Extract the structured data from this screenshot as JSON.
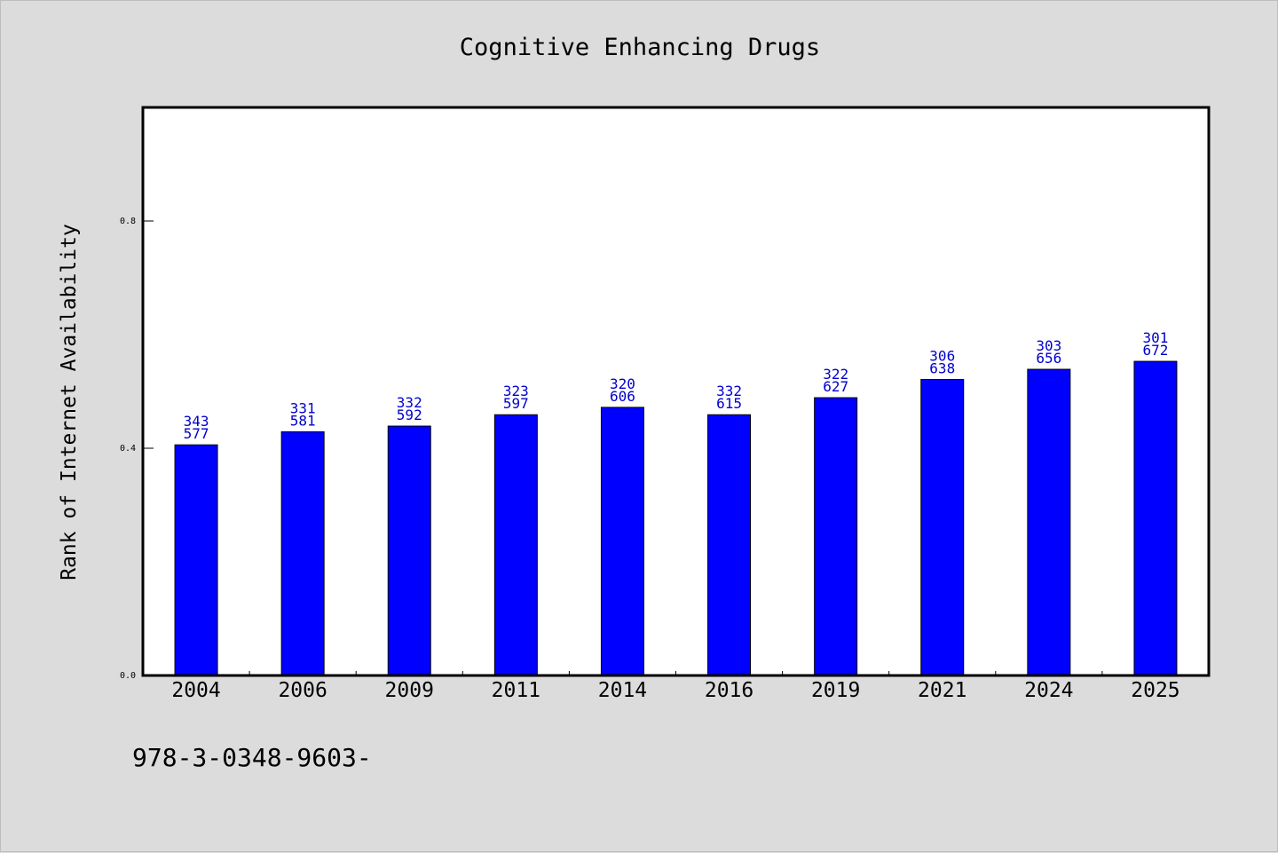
{
  "chart_data": {
    "type": "bar",
    "title": "Cognitive Enhancing Drugs",
    "xlabel": "",
    "ylabel": "Rank of Internet Availability",
    "categories": [
      "2004",
      "2006",
      "2009",
      "2011",
      "2014",
      "2016",
      "2019",
      "2021",
      "2024",
      "2025"
    ],
    "values": [
      0.406,
      0.429,
      0.439,
      0.459,
      0.472,
      0.459,
      0.489,
      0.521,
      0.539,
      0.553
    ],
    "bar_labels_top": [
      "343",
      "331",
      "332",
      "323",
      "320",
      "332",
      "322",
      "306",
      "303",
      "301"
    ],
    "bar_labels_bottom": [
      "577",
      "581",
      "592",
      "597",
      "606",
      "615",
      "627",
      "638",
      "656",
      "672"
    ],
    "ylim": [
      0.0,
      1.0
    ],
    "yticks": [
      0.0,
      0.4,
      0.8
    ],
    "ytick_labels": [
      "0.0",
      "0.4",
      "0.8"
    ],
    "grid": false,
    "colors": {
      "bar": "#0000ff",
      "bar_label": "#0000cc",
      "background": "#dcdcdc",
      "plot": "#ffffff"
    }
  },
  "footer": {
    "text": "978-3-0348-9603-"
  }
}
